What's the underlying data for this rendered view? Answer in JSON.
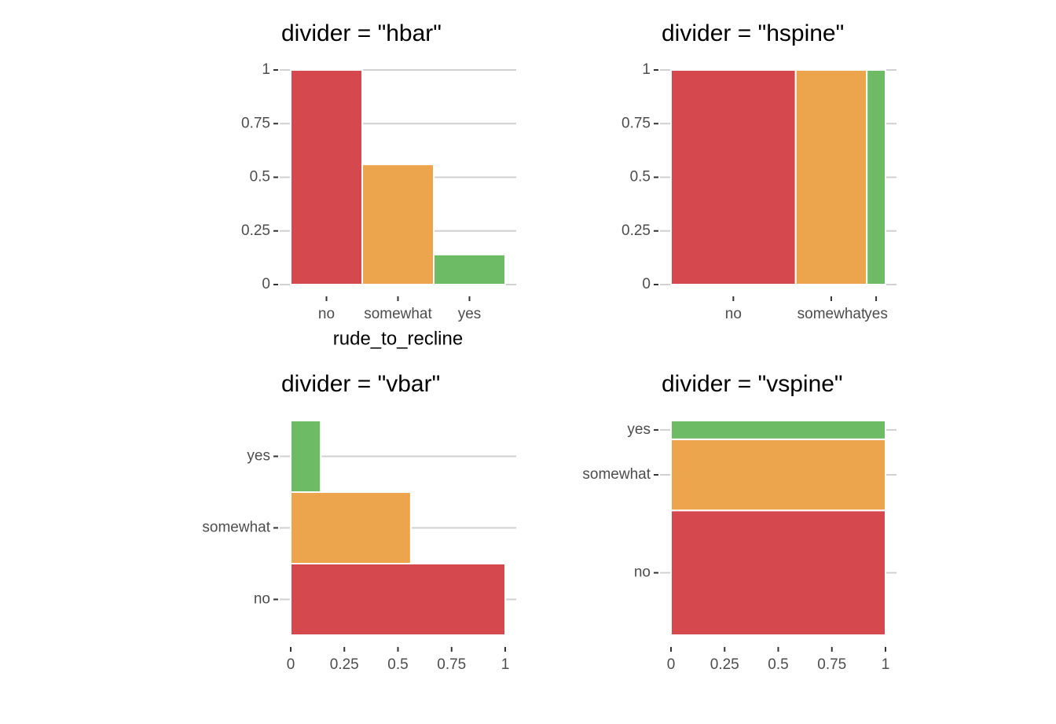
{
  "chart_data": [
    {
      "type": "hbar",
      "title": "divider = \"hbar\"",
      "x_label": "rude_to_recline",
      "categories": [
        "no",
        "somewhat",
        "yes"
      ],
      "values": [
        1,
        0.56,
        0.14
      ],
      "colors": [
        "#d4484e",
        "#eca54c",
        "#6dbb65"
      ],
      "ylim": [
        0,
        1
      ],
      "yticks": [
        0,
        0.25,
        0.5,
        0.75,
        1
      ],
      "grid": true
    },
    {
      "type": "hspine",
      "title": "divider = \"hspine\"",
      "categories": [
        "no",
        "somewhat",
        "yes"
      ],
      "values": [
        1,
        0.57,
        0.15
      ],
      "colors": [
        "#d4484e",
        "#eca54c",
        "#6dbb65"
      ],
      "ylim": [
        0,
        1
      ],
      "yticks": [
        0,
        0.25,
        0.5,
        0.75,
        1
      ],
      "grid": true
    },
    {
      "type": "vbar",
      "title": "divider = \"vbar\"",
      "categories": [
        "no",
        "somewhat",
        "yes"
      ],
      "values": [
        1,
        0.56,
        0.14
      ],
      "colors": [
        "#d4484e",
        "#eca54c",
        "#6dbb65"
      ],
      "xlim": [
        0,
        1
      ],
      "xticks": [
        0,
        0.25,
        0.5,
        0.75,
        1
      ],
      "grid": true
    },
    {
      "type": "vspine",
      "title": "divider = \"vspine\"",
      "categories": [
        "no",
        "somewhat",
        "yes"
      ],
      "values": [
        1,
        0.57,
        0.15
      ],
      "colors": [
        "#d4484e",
        "#eca54c",
        "#6dbb65"
      ],
      "xlim": [
        0,
        1
      ],
      "xticks": [
        0,
        0.25,
        0.5,
        0.75,
        1
      ],
      "grid": true
    }
  ]
}
